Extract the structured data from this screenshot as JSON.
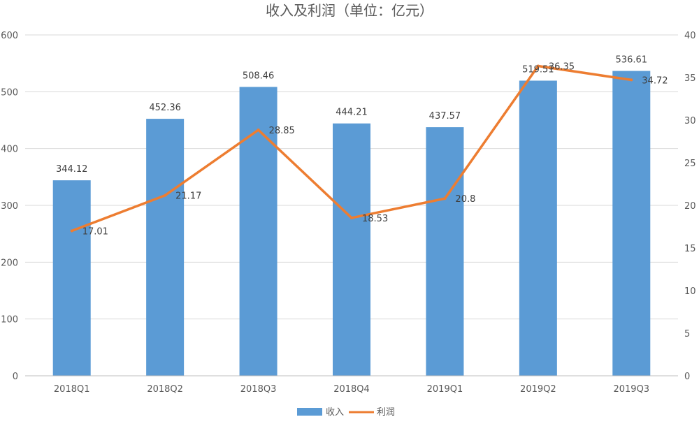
{
  "chart_data": {
    "type": "bar",
    "title": "收入及利润（单位：亿元）",
    "categories": [
      "2018Q1",
      "2018Q2",
      "2018Q3",
      "2018Q4",
      "2019Q1",
      "2019Q2",
      "2019Q3"
    ],
    "series": [
      {
        "name": "收入",
        "type": "bar",
        "axis": "left",
        "values": [
          344.12,
          452.36,
          508.46,
          444.21,
          437.57,
          519.51,
          536.61
        ],
        "color": "#5b9bd5"
      },
      {
        "name": "利润",
        "type": "line",
        "axis": "right",
        "values": [
          17.01,
          21.17,
          28.85,
          18.53,
          20.8,
          36.35,
          34.72
        ],
        "color": "#ed7d31"
      }
    ],
    "ylim_left": [
      0,
      600
    ],
    "yticks_left": [
      "0",
      "100",
      "200",
      "300",
      "400",
      "500",
      "600"
    ],
    "ylim_right": [
      0,
      40
    ],
    "yticks_right": [
      "0",
      "5",
      "10",
      "15",
      "20",
      "25",
      "30",
      "35",
      "40"
    ],
    "grid": true,
    "legend_position": "bottom"
  }
}
